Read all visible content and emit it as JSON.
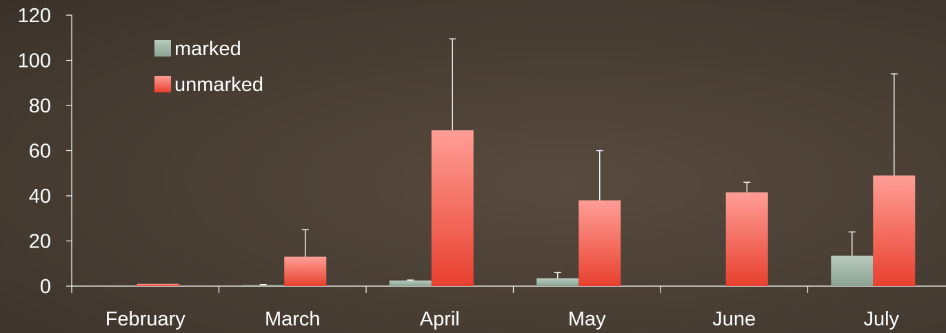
{
  "chart_data": {
    "type": "bar",
    "title": "",
    "xlabel": "",
    "ylabel": "",
    "categories": [
      "February",
      "March",
      "April",
      "May",
      "June",
      "July"
    ],
    "ylim": [
      0,
      120
    ],
    "yticks": [
      "0",
      "20",
      "40",
      "60",
      "80",
      "100",
      "120"
    ],
    "grid": false,
    "legend_position": "top-left",
    "series": [
      {
        "name": "marked",
        "values": [
          0,
          0.5,
          2.5,
          3.5,
          0,
          13.5
        ],
        "error_upper": [
          0,
          0.7,
          2.7,
          6,
          0,
          24
        ],
        "color_top": "#b8cabd",
        "color_bottom": "#8aa393"
      },
      {
        "name": "unmarked",
        "values": [
          1,
          13,
          69,
          38,
          41.5,
          49
        ],
        "error_upper": [
          1,
          25,
          109.5,
          60,
          46,
          94
        ],
        "color_top": "#ff9e96",
        "color_bottom": "#e8402e"
      }
    ]
  }
}
